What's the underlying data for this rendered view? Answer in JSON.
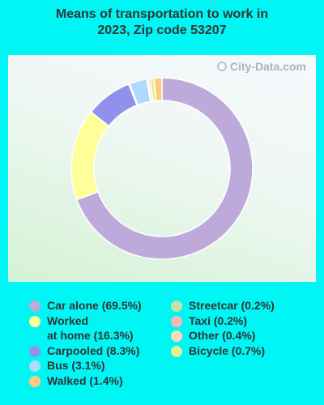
{
  "title": "Means of transportation to work in\n2023, Zip code 53207",
  "watermark": "City-Data.com",
  "chart_data": {
    "type": "pie",
    "title": "Means of transportation to work in 2023, Zip code 53207",
    "slices": [
      {
        "label": "Car alone (69.5%)",
        "value": 69.5,
        "color": "#bda9da"
      },
      {
        "label": "Worked\nat home (16.3%)",
        "value": 16.3,
        "color": "#ffff99"
      },
      {
        "label": "Carpooled (8.3%)",
        "value": 8.3,
        "color": "#9191ec"
      },
      {
        "label": "Streetcar (0.2%)",
        "value": 0.2,
        "color": "#c3e2a9"
      },
      {
        "label": "Bus (3.1%)",
        "value": 3.1,
        "color": "#aedafb"
      },
      {
        "label": "Taxi (0.2%)",
        "value": 0.2,
        "color": "#f7b7b3"
      },
      {
        "label": "Other (0.4%)",
        "value": 0.4,
        "color": "#f9dcb5"
      },
      {
        "label": "Bicycle (0.7%)",
        "value": 0.7,
        "color": "#dff28f"
      },
      {
        "label": "Walked (1.4%)",
        "value": 1.4,
        "color": "#ffc880"
      }
    ],
    "legend_order": [
      [
        "Car alone (69.5%)",
        "Worked\nat home (16.3%)",
        "Carpooled (8.3%)",
        "Bus (3.1%)",
        "Walked (1.4%)"
      ],
      [
        "Streetcar (0.2%)",
        "Taxi (0.2%)",
        "Other (0.4%)",
        "Bicycle (0.7%)"
      ]
    ],
    "legend_placement": "bottom"
  }
}
